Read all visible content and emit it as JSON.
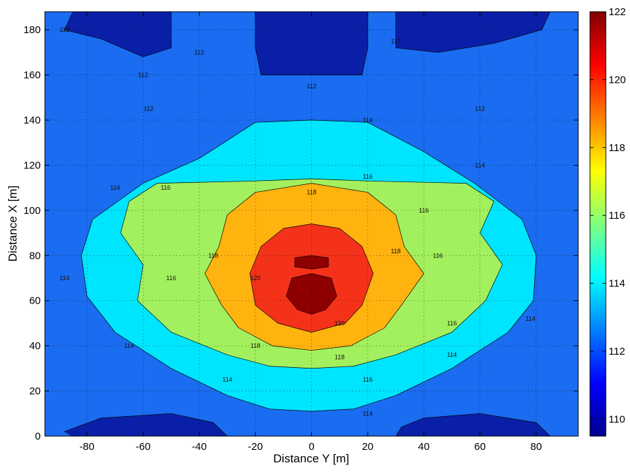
{
  "chart_data": {
    "type": "heatmap",
    "subtype": "filled-contour",
    "title": "",
    "xlabel": "Distance Y [m]",
    "ylabel": "Distance X [m]",
    "xlim": [
      -95,
      95
    ],
    "ylim": [
      0,
      188
    ],
    "xticks": [
      -80,
      -60,
      -40,
      -20,
      0,
      20,
      40,
      60,
      80
    ],
    "yticks": [
      0,
      20,
      40,
      60,
      80,
      100,
      120,
      140,
      160,
      180
    ],
    "grid": true,
    "colormap": "jet",
    "colorbar": {
      "range": [
        109.5,
        122
      ],
      "ticks": [
        110,
        112,
        114,
        116,
        118,
        120,
        122
      ]
    },
    "contour_levels": [
      110,
      112,
      114,
      116,
      118,
      120,
      121.5
    ],
    "level_colors": [
      "#0a1fa8",
      "#1a6cf0",
      "#00e5ff",
      "#a2f05e",
      "#ffb30f",
      "#f4321a",
      "#8f0000"
    ],
    "background_color": "#1a6cf0",
    "regions": [
      {
        "value": 110,
        "shape": "top-left-low",
        "points": [
          [
            -85,
            188
          ],
          [
            -50,
            188
          ],
          [
            -50,
            172
          ],
          [
            -60,
            168
          ],
          [
            -75,
            176
          ],
          [
            -88,
            180
          ]
        ]
      },
      {
        "value": 110,
        "shape": "top-center-low",
        "points": [
          [
            -20,
            188
          ],
          [
            20,
            188
          ],
          [
            20,
            172
          ],
          [
            18,
            160
          ],
          [
            -18,
            160
          ],
          [
            -20,
            172
          ]
        ]
      },
      {
        "value": 110,
        "shape": "top-right-low",
        "points": [
          [
            30,
            188
          ],
          [
            85,
            188
          ],
          [
            82,
            180
          ],
          [
            65,
            174
          ],
          [
            45,
            170
          ],
          [
            30,
            172
          ]
        ]
      },
      {
        "value": 110,
        "shape": "bottom-left-low",
        "points": [
          [
            -85,
            0
          ],
          [
            -30,
            0
          ],
          [
            -35,
            6
          ],
          [
            -50,
            10
          ],
          [
            -75,
            8
          ],
          [
            -88,
            2
          ]
        ]
      },
      {
        "value": 110,
        "shape": "bottom-right-low",
        "points": [
          [
            30,
            0
          ],
          [
            85,
            0
          ],
          [
            80,
            6
          ],
          [
            60,
            10
          ],
          [
            40,
            8
          ],
          [
            32,
            4
          ]
        ]
      },
      {
        "value": 114,
        "shape": "outer-cyan",
        "points": [
          [
            -40,
            123
          ],
          [
            -20,
            139
          ],
          [
            0,
            140
          ],
          [
            20,
            139
          ],
          [
            40,
            126
          ],
          [
            58,
            112
          ],
          [
            75,
            96
          ],
          [
            80,
            80
          ],
          [
            79,
            60
          ],
          [
            70,
            46
          ],
          [
            50,
            30
          ],
          [
            30,
            18
          ],
          [
            15,
            12
          ],
          [
            0,
            11
          ],
          [
            -15,
            12
          ],
          [
            -30,
            18
          ],
          [
            -50,
            30
          ],
          [
            -70,
            46
          ],
          [
            -80,
            62
          ],
          [
            -82,
            80
          ],
          [
            -78,
            96
          ],
          [
            -60,
            112
          ]
        ]
      },
      {
        "value": 116,
        "shape": "green",
        "points": [
          [
            -55,
            112
          ],
          [
            -20,
            113
          ],
          [
            0,
            114
          ],
          [
            20,
            113
          ],
          [
            55,
            112
          ],
          [
            65,
            104
          ],
          [
            60,
            90
          ],
          [
            68,
            76
          ],
          [
            62,
            60
          ],
          [
            50,
            46
          ],
          [
            30,
            36
          ],
          [
            15,
            31
          ],
          [
            0,
            30
          ],
          [
            -15,
            31
          ],
          [
            -30,
            36
          ],
          [
            -50,
            46
          ],
          [
            -62,
            60
          ],
          [
            -60,
            76
          ],
          [
            -68,
            90
          ],
          [
            -65,
            104
          ]
        ]
      },
      {
        "value": 118,
        "shape": "orange",
        "points": [
          [
            -20,
            108
          ],
          [
            -10,
            110
          ],
          [
            0,
            112
          ],
          [
            10,
            110
          ],
          [
            20,
            108
          ],
          [
            30,
            98
          ],
          [
            33,
            84
          ],
          [
            40,
            72
          ],
          [
            32,
            58
          ],
          [
            26,
            48
          ],
          [
            14,
            40
          ],
          [
            0,
            38
          ],
          [
            -14,
            40
          ],
          [
            -26,
            48
          ],
          [
            -32,
            58
          ],
          [
            -38,
            72
          ],
          [
            -33,
            84
          ],
          [
            -30,
            98
          ]
        ]
      },
      {
        "value": 120,
        "shape": "red",
        "points": [
          [
            -10,
            92
          ],
          [
            0,
            94
          ],
          [
            10,
            92
          ],
          [
            18,
            84
          ],
          [
            22,
            72
          ],
          [
            18,
            58
          ],
          [
            12,
            50
          ],
          [
            0,
            46
          ],
          [
            -12,
            50
          ],
          [
            -20,
            58
          ],
          [
            -22,
            72
          ],
          [
            -18,
            84
          ]
        ]
      },
      {
        "value": 121.5,
        "shape": "core-lower",
        "points": [
          [
            -7,
            70
          ],
          [
            0,
            72
          ],
          [
            7,
            70
          ],
          [
            9,
            62
          ],
          [
            5,
            56
          ],
          [
            0,
            54
          ],
          [
            -5,
            56
          ],
          [
            -9,
            62
          ]
        ]
      },
      {
        "value": 121.5,
        "shape": "core-upper",
        "points": [
          [
            -6,
            79
          ],
          [
            0,
            80
          ],
          [
            6,
            79
          ],
          [
            6,
            75
          ],
          [
            0,
            74
          ],
          [
            -6,
            75
          ]
        ]
      }
    ],
    "contour_labels": [
      {
        "text": "112",
        "x": -88,
        "y": 180
      },
      {
        "text": "112",
        "x": -40,
        "y": 170
      },
      {
        "text": "112",
        "x": -60,
        "y": 160
      },
      {
        "text": "112",
        "x": -58,
        "y": 145
      },
      {
        "text": "112",
        "x": 30,
        "y": 175
      },
      {
        "text": "112",
        "x": 60,
        "y": 145
      },
      {
        "text": "112",
        "x": 0,
        "y": 155
      },
      {
        "text": "114",
        "x": 20,
        "y": 140
      },
      {
        "text": "114",
        "x": -70,
        "y": 110
      },
      {
        "text": "114",
        "x": 60,
        "y": 120
      },
      {
        "text": "114",
        "x": -88,
        "y": 70
      },
      {
        "text": "114",
        "x": 78,
        "y": 52
      },
      {
        "text": "114",
        "x": -65,
        "y": 40
      },
      {
        "text": "114",
        "x": 50,
        "y": 36
      },
      {
        "text": "114",
        "x": -30,
        "y": 25
      },
      {
        "text": "114",
        "x": 20,
        "y": 10
      },
      {
        "text": "116",
        "x": -52,
        "y": 110
      },
      {
        "text": "116",
        "x": 20,
        "y": 115
      },
      {
        "text": "116",
        "x": 40,
        "y": 100
      },
      {
        "text": "116",
        "x": 45,
        "y": 80
      },
      {
        "text": "116",
        "x": -50,
        "y": 70
      },
      {
        "text": "116",
        "x": 50,
        "y": 50
      },
      {
        "text": "116",
        "x": 20,
        "y": 25
      },
      {
        "text": "118",
        "x": 0,
        "y": 108
      },
      {
        "text": "118",
        "x": -35,
        "y": 80
      },
      {
        "text": "118",
        "x": 30,
        "y": 82
      },
      {
        "text": "118",
        "x": -20,
        "y": 40
      },
      {
        "text": "118",
        "x": 10,
        "y": 35
      },
      {
        "text": "120",
        "x": -20,
        "y": 70
      },
      {
        "text": "120",
        "x": 10,
        "y": 50
      }
    ]
  }
}
